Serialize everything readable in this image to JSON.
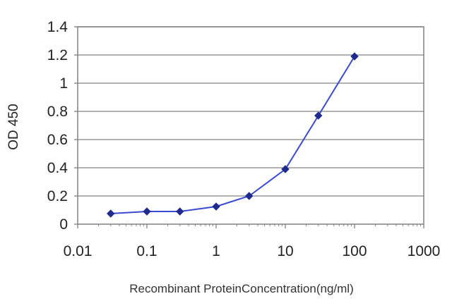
{
  "chart_data": {
    "type": "line",
    "xlabel": "Recombinant ProteinConcentration(ng/ml)",
    "ylabel": "OD 450",
    "x_scale": "log",
    "xlim": [
      0.01,
      1000
    ],
    "ylim": [
      0,
      1.4
    ],
    "x_ticks": [
      0.01,
      0.1,
      1,
      10,
      100,
      1000
    ],
    "x_tick_labels": [
      "0.01",
      "0.1",
      "1",
      "10",
      "100",
      "1000"
    ],
    "y_ticks": [
      0,
      0.2,
      0.4,
      0.6,
      0.8,
      1,
      1.2,
      1.4
    ],
    "y_tick_labels": [
      "0",
      "0.2",
      "0.4",
      "0.6",
      "0.8",
      "1",
      "1.2",
      "1.4"
    ],
    "grid": "horizontal",
    "legend": "none",
    "series": [
      {
        "x": [
          0.03,
          0.1,
          0.3,
          1,
          3,
          10,
          30,
          100
        ],
        "y": [
          0.075,
          0.09,
          0.09,
          0.125,
          0.2,
          0.39,
          0.77,
          1.19
        ],
        "color": "#1f2a8c"
      }
    ],
    "colors": {
      "line": "#3a4bd0",
      "marker": "#1f2a8c",
      "grid": "#999999",
      "frame": "#888888"
    }
  }
}
